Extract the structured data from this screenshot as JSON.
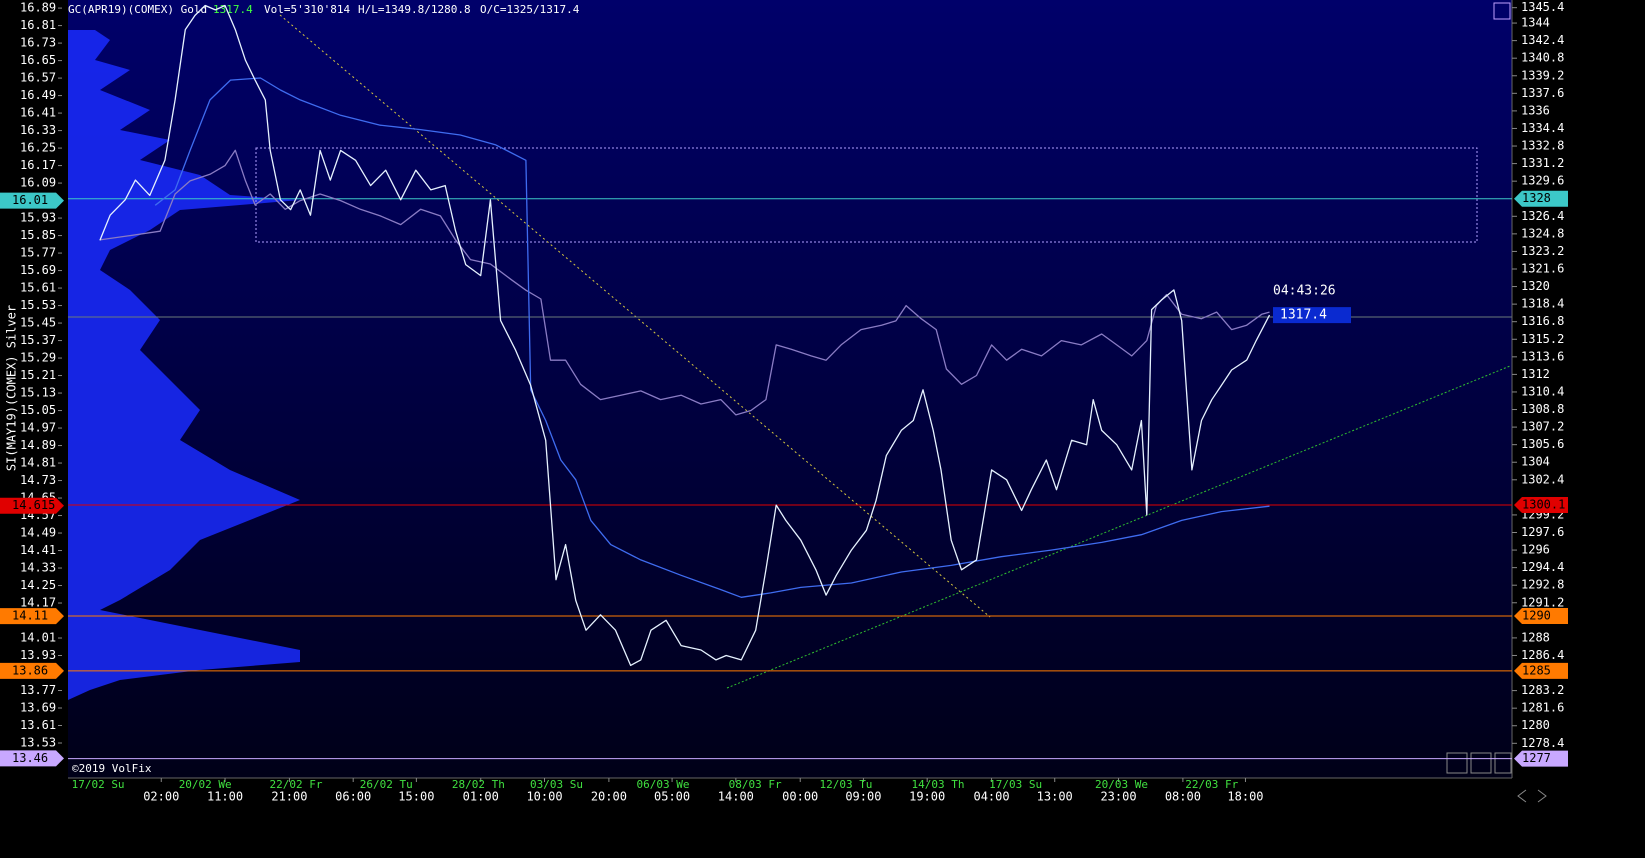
{
  "chart_data": {
    "type": "line",
    "header": {
      "symbol": "GC(APR19)(COMEX) Gold",
      "last": "1317.4",
      "volume": "Vol=5'310'814",
      "high_low": "H/L=1349.8/1280.8",
      "open_close": "O/C=1325/1317.4"
    },
    "y_label": "SI(MAY19)(COMEX) Silver",
    "footer": "©2019 VolFix",
    "xlim": [
      0,
      240
    ],
    "xticks": [
      {
        "value": 15.5,
        "label": "02:00"
      },
      {
        "value": 26.1,
        "label": "11:00"
      },
      {
        "value": 36.8,
        "label": "21:00"
      },
      {
        "value": 47.4,
        "label": "06:00"
      },
      {
        "value": 57.9,
        "label": "15:00"
      },
      {
        "value": 68.6,
        "label": "01:00"
      },
      {
        "value": 79.2,
        "label": "10:00"
      },
      {
        "value": 89.9,
        "label": "20:00"
      },
      {
        "value": 100.4,
        "label": "05:00"
      },
      {
        "value": 111.0,
        "label": "14:00"
      },
      {
        "value": 121.7,
        "label": "00:00"
      },
      {
        "value": 132.2,
        "label": "09:00"
      },
      {
        "value": 142.8,
        "label": "19:00"
      },
      {
        "value": 153.5,
        "label": "04:00"
      },
      {
        "value": 164.0,
        "label": "13:00"
      },
      {
        "value": 174.6,
        "label": "23:00"
      },
      {
        "value": 185.3,
        "label": "08:00"
      },
      {
        "value": 195.7,
        "label": "18:00"
      }
    ],
    "date_ticks": [
      {
        "value": 5.0,
        "label": "17/02 Su"
      },
      {
        "value": 22.8,
        "label": "20/02 We"
      },
      {
        "value": 37.9,
        "label": "22/02 Fr"
      },
      {
        "value": 52.9,
        "label": "26/02 Tu"
      },
      {
        "value": 68.2,
        "label": "28/02 Th"
      },
      {
        "value": 81.2,
        "label": "03/03 Su"
      },
      {
        "value": 98.9,
        "label": "06/03 We"
      },
      {
        "value": 114.2,
        "label": "08/03 Fr"
      },
      {
        "value": 129.3,
        "label": "12/03 Tu"
      },
      {
        "value": 144.6,
        "label": "14/03 Th"
      },
      {
        "value": 157.5,
        "label": "17/03 Su"
      },
      {
        "value": 175.1,
        "label": "20/03 We"
      },
      {
        "value": 190.1,
        "label": "22/03 Fr"
      }
    ],
    "ylim": [
      13.37,
      16.927
    ],
    "yticks": [
      16.89,
      16.81,
      16.73,
      16.65,
      16.57,
      16.49,
      16.41,
      16.33,
      16.25,
      16.17,
      16.09,
      15.93,
      15.85,
      15.77,
      15.69,
      15.61,
      15.53,
      15.45,
      15.37,
      15.29,
      15.21,
      15.13,
      15.05,
      14.97,
      14.89,
      14.81,
      14.73,
      14.65,
      14.57,
      14.49,
      14.41,
      14.33,
      14.25,
      14.17,
      14.01,
      13.93,
      13.77,
      13.69,
      13.61,
      13.53
    ],
    "y2lim": [
      1275.24,
      1346.1
    ],
    "y2ticks": [
      1345.4,
      1344,
      1342.4,
      1340.8,
      1339.2,
      1337.6,
      1336,
      1334.4,
      1332.8,
      1331.2,
      1329.6,
      1326.4,
      1324.8,
      1323.2,
      1321.6,
      1320,
      1318.4,
      1316.8,
      1315.2,
      1313.6,
      1312,
      1310.4,
      1308.8,
      1307.2,
      1305.6,
      1304,
      1302.4,
      1299.2,
      1297.6,
      1296,
      1294.4,
      1292.8,
      1291.2,
      1288,
      1286.4,
      1283.2,
      1281.6,
      1280,
      1278.4
    ],
    "levels": [
      {
        "y": 16.01,
        "y2": 1328,
        "color": "#3cc8c8",
        "line": true
      },
      {
        "y": 14.615,
        "y2": 1300.1,
        "color": "#e00000",
        "line": true
      },
      {
        "y": 14.11,
        "y2": 1290,
        "color": "#ff7a00",
        "line": true
      },
      {
        "y": 13.86,
        "y2": 1285,
        "color": "#ff7a00",
        "line": true
      },
      {
        "y": 13.46,
        "y2": 1277,
        "color": "#c8a8ff",
        "line": true
      }
    ],
    "price_tag": {
      "time": "04:43:26",
      "value": "1317.4"
    },
    "series": [
      {
        "color": "#8a7cc4",
        "axis": "y",
        "x": [
          5.3,
          10.3,
          15.3,
          17.8,
          20.3,
          23.6,
          26.1,
          27.8,
          29.5,
          31.1,
          33.6,
          36.1,
          38.6,
          41.9,
          45.3,
          48.6,
          51.9,
          55.3,
          58.6,
          61.9,
          64.4,
          66.9,
          70.2,
          73.6,
          76.1,
          78.6,
          80.2,
          82.7,
          85.2,
          88.5,
          91.9,
          95.2,
          98.5,
          101.9,
          105.2,
          108.5,
          111.0,
          113.5,
          116.0,
          117.7,
          120.2,
          123.5,
          126.0,
          128.5,
          131.8,
          135.2,
          137.6,
          139.3,
          141.8,
          144.3,
          146.0,
          148.5,
          151.0,
          153.5,
          156.0,
          158.5,
          161.8,
          165.1,
          168.4,
          171.8,
          174.3,
          176.8,
          179.3,
          180.9,
          182.6,
          185.1,
          188.4,
          190.9,
          193.4,
          195.9,
          198.4,
          199.7
        ],
        "values": [
          15.83,
          15.85,
          15.87,
          16.04,
          16.1,
          16.13,
          16.17,
          16.24,
          16.1,
          15.99,
          16.04,
          15.97,
          16.01,
          16.04,
          16.01,
          15.97,
          15.94,
          15.9,
          15.97,
          15.94,
          15.83,
          15.74,
          15.72,
          15.65,
          15.6,
          15.56,
          15.28,
          15.28,
          15.17,
          15.1,
          15.12,
          15.14,
          15.1,
          15.12,
          15.08,
          15.1,
          15.03,
          15.05,
          15.1,
          15.35,
          15.33,
          15.3,
          15.28,
          15.35,
          15.42,
          15.44,
          15.46,
          15.53,
          15.47,
          15.42,
          15.24,
          15.17,
          15.21,
          15.35,
          15.28,
          15.33,
          15.3,
          15.37,
          15.35,
          15.4,
          15.35,
          15.3,
          15.37,
          15.53,
          15.58,
          15.49,
          15.47,
          15.5,
          15.42,
          15.44,
          15.49,
          15.5
        ]
      },
      {
        "color": "#3f6cf0",
        "axis": "y2",
        "x": [
          14.5,
          17.8,
          20.3,
          23.6,
          27.0,
          32.0,
          35.3,
          38.6,
          45.3,
          51.9,
          58.6,
          65.2,
          71.1,
          76.1,
          76.9,
          79.4,
          81.9,
          84.4,
          86.9,
          90.2,
          95.2,
          101.9,
          108.5,
          111.9,
          116.8,
          121.8,
          130.2,
          138.5,
          146.8,
          155.1,
          163.4,
          171.8,
          178.4,
          185.1,
          191.7,
          199.7
        ],
        "values": [
          1327.4,
          1328.8,
          1332.4,
          1337.0,
          1338.8,
          1339.0,
          1337.9,
          1337.0,
          1335.6,
          1334.7,
          1334.3,
          1333.8,
          1332.9,
          1331.5,
          1310.6,
          1307.8,
          1304.2,
          1302.4,
          1298.7,
          1296.5,
          1295.1,
          1293.7,
          1292.4,
          1291.7,
          1292.1,
          1292.6,
          1293.0,
          1294.0,
          1294.6,
          1295.4,
          1296.0,
          1296.7,
          1297.4,
          1298.7,
          1299.5,
          1300.0
        ]
      },
      {
        "color": "#e6f2ff",
        "axis": "y2",
        "x": [
          5.3,
          7.0,
          9.5,
          11.2,
          13.6,
          16.1,
          17.8,
          19.5,
          21.1,
          22.8,
          24.5,
          26.1,
          27.8,
          29.5,
          31.1,
          32.8,
          33.6,
          35.3,
          37.0,
          38.6,
          40.3,
          41.9,
          43.6,
          45.3,
          47.8,
          50.3,
          52.8,
          55.3,
          57.8,
          60.3,
          62.7,
          64.4,
          66.1,
          68.6,
          70.2,
          71.9,
          74.4,
          76.9,
          79.4,
          81.1,
          82.7,
          84.4,
          86.1,
          88.5,
          91.0,
          93.5,
          95.2,
          96.9,
          99.4,
          101.9,
          105.2,
          107.7,
          109.4,
          111.9,
          114.3,
          116.0,
          117.7,
          119.3,
          121.8,
          124.3,
          126.0,
          127.7,
          130.2,
          132.7,
          134.3,
          136.0,
          138.5,
          140.5,
          142.1,
          143.8,
          145.1,
          146.8,
          148.5,
          151.0,
          153.5,
          156.0,
          158.5,
          160.1,
          162.6,
          164.3,
          166.8,
          169.3,
          170.4,
          171.8,
          174.3,
          176.8,
          178.4,
          179.3,
          180.1,
          181.8,
          183.8,
          185.1,
          186.8,
          188.4,
          190.1,
          191.7,
          193.4,
          195.9,
          197.5,
          199.7
        ],
        "values": [
          1324.2,
          1326.5,
          1327.9,
          1329.7,
          1328.3,
          1331.5,
          1337.0,
          1343.4,
          1344.7,
          1345.6,
          1345.2,
          1345.6,
          1343.4,
          1340.6,
          1338.8,
          1337.0,
          1332.4,
          1327.9,
          1327.0,
          1328.8,
          1326.5,
          1332.4,
          1329.7,
          1332.4,
          1331.5,
          1329.2,
          1330.6,
          1327.9,
          1330.6,
          1328.8,
          1329.2,
          1325.1,
          1322.0,
          1321.0,
          1327.9,
          1316.9,
          1314.2,
          1311.0,
          1306.0,
          1293.3,
          1296.5,
          1291.4,
          1288.7,
          1290.1,
          1288.7,
          1285.5,
          1286.0,
          1288.7,
          1289.6,
          1287.3,
          1286.9,
          1286.0,
          1286.4,
          1286.0,
          1288.7,
          1294.2,
          1300.1,
          1298.7,
          1296.9,
          1294.2,
          1291.9,
          1293.7,
          1296.0,
          1297.8,
          1300.5,
          1304.6,
          1306.9,
          1307.8,
          1310.6,
          1306.9,
          1303.3,
          1296.9,
          1294.2,
          1295.1,
          1303.3,
          1302.4,
          1299.6,
          1301.5,
          1304.2,
          1301.5,
          1306.0,
          1305.6,
          1309.7,
          1306.9,
          1305.6,
          1303.3,
          1307.8,
          1299.2,
          1317.9,
          1318.8,
          1319.7,
          1316.9,
          1303.3,
          1307.8,
          1309.7,
          1311.0,
          1312.4,
          1313.3,
          1315.1,
          1317.4
        ]
      }
    ]
  }
}
